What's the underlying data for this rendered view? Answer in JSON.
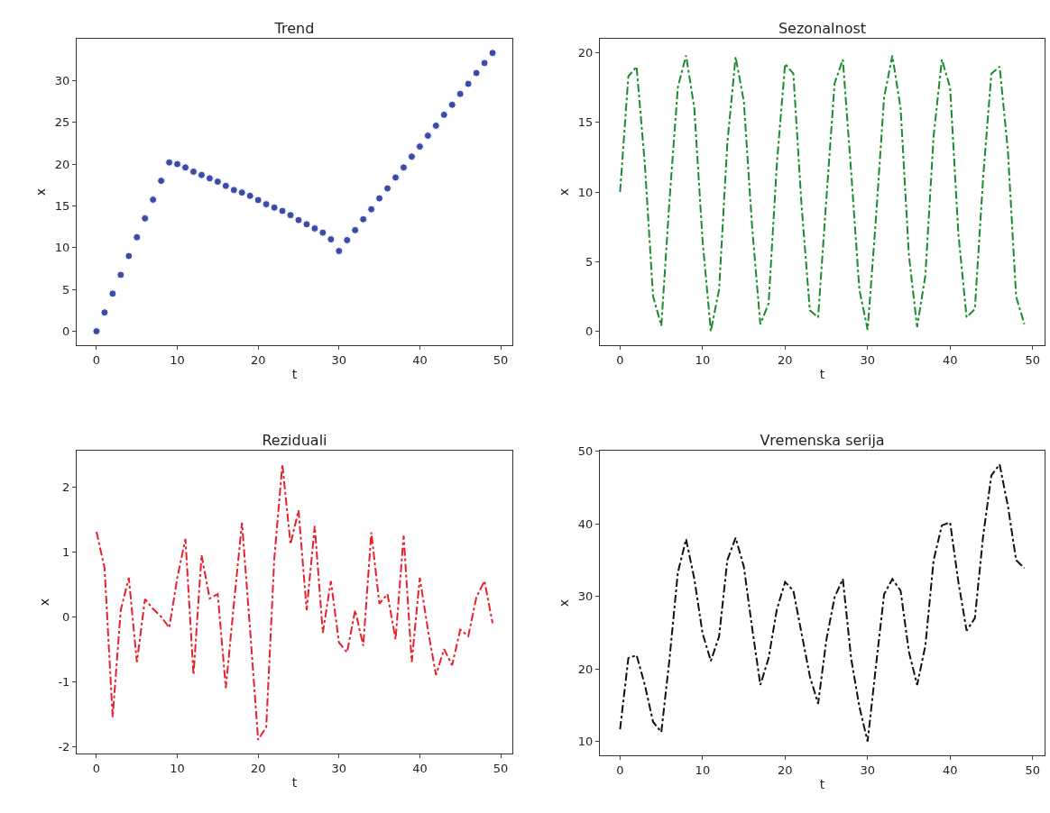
{
  "chart_data": [
    {
      "type": "scatter",
      "title": "Trend",
      "xlabel": "t",
      "ylabel": "x",
      "marker": "circle",
      "color": "#3a4ca8",
      "grid": false,
      "legend": false,
      "x": [
        0,
        1,
        2,
        3,
        4,
        5,
        6,
        7,
        8,
        9,
        10,
        11,
        12,
        13,
        14,
        15,
        16,
        17,
        18,
        19,
        20,
        21,
        22,
        23,
        24,
        25,
        26,
        27,
        28,
        29,
        30,
        31,
        32,
        33,
        34,
        35,
        36,
        37,
        38,
        39,
        40,
        41,
        42,
        43,
        44,
        45,
        46,
        47,
        48,
        49
      ],
      "values": [
        0,
        2.25,
        4.5,
        6.75,
        9,
        11.25,
        13.5,
        15.75,
        18,
        20.2,
        20,
        19.6,
        19.1,
        18.7,
        18.3,
        17.9,
        17.4,
        16.9,
        16.6,
        16.2,
        15.7,
        15.2,
        14.8,
        14.4,
        13.9,
        13.3,
        12.8,
        12.3,
        11.8,
        11,
        9.6,
        10.9,
        12.1,
        13.4,
        14.6,
        15.9,
        17.1,
        18.4,
        19.6,
        20.9,
        22.1,
        23.4,
        24.6,
        25.9,
        27.1,
        28.4,
        29.6,
        30.9,
        32.1,
        33.3
      ],
      "xlim": [
        -2.45,
        51.45
      ],
      "xticks": [
        0,
        10,
        20,
        30,
        40,
        50
      ],
      "ylim": [
        -1.67,
        35
      ],
      "yticks": [
        0,
        5,
        10,
        15,
        20,
        25,
        30
      ]
    },
    {
      "type": "line",
      "title": "Sezonalnost",
      "xlabel": "t",
      "ylabel": "x",
      "marker": "none",
      "line_style": "dashed",
      "color": "#1a8c2a",
      "grid": false,
      "legend": false,
      "x": [
        0,
        1,
        2,
        3,
        4,
        5,
        6,
        7,
        8,
        9,
        10,
        11,
        12,
        13,
        14,
        15,
        16,
        17,
        18,
        19,
        20,
        21,
        22,
        23,
        24,
        25,
        26,
        27,
        28,
        29,
        30,
        31,
        32,
        33,
        34,
        35,
        36,
        37,
        38,
        39,
        40,
        41,
        42,
        43,
        44,
        45,
        46,
        47,
        48,
        49
      ],
      "values": [
        10,
        18.3,
        19,
        12,
        2.5,
        0.4,
        9.5,
        17.5,
        19.8,
        16,
        6.5,
        0,
        3,
        13.5,
        19.7,
        16.5,
        7.5,
        0.5,
        2,
        12,
        19.2,
        18.5,
        9,
        1.5,
        1,
        9.5,
        17.8,
        19.5,
        11.5,
        3,
        0.1,
        8,
        16.8,
        19.8,
        16,
        5.5,
        0.3,
        4,
        14,
        19.5,
        17.5,
        7,
        1,
        1.6,
        11,
        18.5,
        19,
        13,
        2.5,
        0.5
      ],
      "xlim": [
        -2.45,
        51.45
      ],
      "xticks": [
        0,
        10,
        20,
        30,
        40,
        50
      ],
      "ylim": [
        -1,
        21
      ],
      "yticks": [
        0,
        5,
        10,
        15,
        20
      ]
    },
    {
      "type": "line",
      "title": "Reziduali",
      "xlabel": "t",
      "ylabel": "x",
      "marker": "none",
      "line_style": "dashed",
      "color": "#e8202a",
      "grid": false,
      "legend": false,
      "x": [
        0,
        1,
        2,
        3,
        4,
        5,
        6,
        7,
        8,
        9,
        10,
        11,
        12,
        13,
        14,
        15,
        16,
        17,
        18,
        19,
        20,
        21,
        22,
        23,
        24,
        25,
        26,
        27,
        28,
        29,
        30,
        31,
        32,
        33,
        34,
        35,
        36,
        37,
        38,
        39,
        40,
        41,
        42,
        43,
        44,
        45,
        46,
        47,
        48,
        49
      ],
      "values": [
        1.31,
        0.75,
        -1.55,
        0.1,
        0.6,
        -0.7,
        0.27,
        0.12,
        0,
        -0.17,
        0.6,
        1.2,
        -0.9,
        0.95,
        0.28,
        0.35,
        -1.1,
        0.2,
        1.45,
        -0.2,
        -1.9,
        -1.7,
        0.9,
        2.35,
        1.12,
        1.64,
        0.1,
        1.4,
        -0.25,
        0.55,
        -0.4,
        -0.55,
        0.1,
        -0.45,
        1.3,
        0.2,
        0.35,
        -0.35,
        1.25,
        -0.7,
        0.6,
        -0.2,
        -0.9,
        -0.5,
        -0.75,
        -0.2,
        -0.3,
        0.3,
        0.55,
        -0.1
      ],
      "xlim": [
        -2.45,
        51.45
      ],
      "xticks": [
        0,
        10,
        20,
        30,
        40,
        50
      ],
      "ylim": [
        -2.11,
        2.56
      ],
      "yticks": [
        -2,
        -1,
        0,
        1,
        2
      ]
    },
    {
      "type": "line",
      "title": "Vremenska serija",
      "xlabel": "t",
      "ylabel": "x",
      "marker": "none",
      "line_style": "dashed",
      "color": "#111111",
      "grid": false,
      "legend": false,
      "x": [
        0,
        1,
        2,
        3,
        4,
        5,
        6,
        7,
        8,
        9,
        10,
        11,
        12,
        13,
        14,
        15,
        16,
        17,
        18,
        19,
        20,
        21,
        22,
        23,
        24,
        25,
        26,
        27,
        28,
        29,
        30,
        31,
        32,
        33,
        34,
        35,
        36,
        37,
        38,
        39,
        40,
        41,
        42,
        43,
        44,
        45,
        46,
        47,
        48,
        49
      ],
      "values": [
        11.7,
        21.5,
        21.9,
        17.8,
        12.7,
        11.3,
        21.5,
        33.3,
        37.9,
        32.4,
        24.9,
        21.1,
        24.5,
        35,
        38.1,
        34.1,
        25.7,
        17.8,
        21.5,
        28.2,
        32,
        30.8,
        24.9,
        19,
        15.2,
        24,
        29.9,
        32.4,
        21.5,
        14.8,
        10,
        20.3,
        30.3,
        32.4,
        30.8,
        22.4,
        17.8,
        23.2,
        35,
        39.8,
        40.2,
        32,
        25.3,
        27,
        38.3,
        46.7,
        48.2,
        42.5,
        35,
        33.9
      ],
      "xlim": [
        -2.45,
        51.45
      ],
      "xticks": [
        0,
        10,
        20,
        30,
        40,
        50
      ],
      "ylim": [
        8.1,
        50.1
      ],
      "yticks": [
        10,
        20,
        30,
        40,
        50
      ]
    }
  ]
}
